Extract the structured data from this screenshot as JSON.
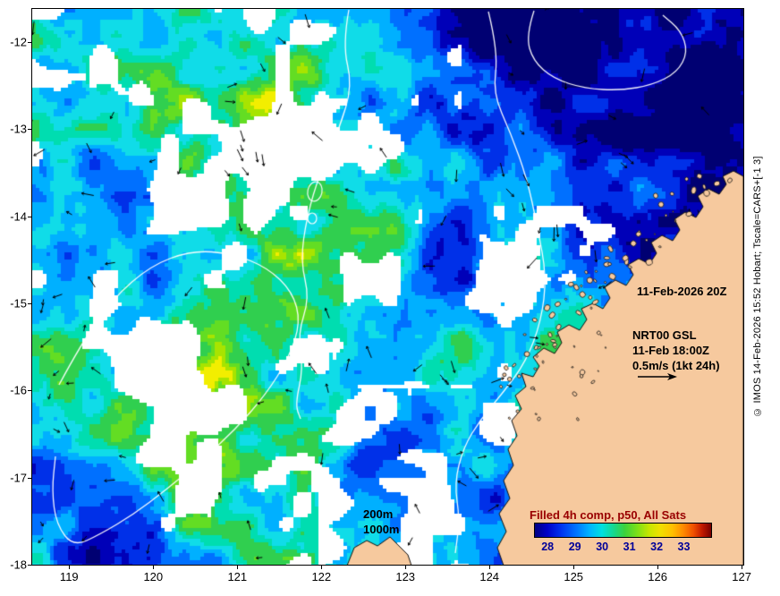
{
  "figure": {
    "description": "Satellite sea-surface-temperature composite map with current vectors, north-west Australia coast"
  },
  "axes": {
    "x": {
      "ticks": [
        "119",
        "120",
        "121",
        "122",
        "123",
        "124",
        "125",
        "126",
        "127"
      ],
      "values": [
        119,
        120,
        121,
        122,
        123,
        124,
        125,
        126,
        127
      ],
      "range": [
        118.56,
        127.02
      ]
    },
    "y": {
      "ticks": [
        "-12",
        "-13",
        "-14",
        "-15",
        "-16",
        "-17",
        "-18"
      ],
      "values": [
        -12,
        -13,
        -14,
        -15,
        -16,
        -17,
        -18
      ],
      "range": [
        -18,
        -11.62
      ]
    }
  },
  "annotations": {
    "timestamp": "11-Feb-2026 20Z",
    "vector_key": {
      "model": "NRT00 GSL",
      "time": "11-Feb 18:00Z",
      "scale": "0.5m/s (1kt 24h)"
    },
    "contour_labels": [
      "200m",
      "1000m"
    ]
  },
  "colorbar": {
    "title": "Filled 4h comp, p50, All Sats",
    "ticks": [
      28,
      29,
      30,
      31,
      32,
      33
    ],
    "range": [
      27.5,
      34
    ],
    "title_color": "#990000"
  },
  "credit": "© IMOS 14-Feb-2026 15:52 Hobart; Tscale=CARS+[-1 3]",
  "colors": {
    "land": "#f6c99e",
    "no_data": "#ffffff",
    "contour": "#ffffff",
    "vectors": "#000000",
    "sst_palette": [
      "#000072",
      "#0000b8",
      "#0030e8",
      "#0070ff",
      "#00b0ff",
      "#10dce8",
      "#00ddb0",
      "#30cf4f",
      "#63dd23",
      "#a8e400",
      "#f2ee00"
    ]
  },
  "chart_data": {
    "type": "heatmap",
    "title": "Filled 4h comp, p50, All Sats",
    "x_ticks": [
      119,
      120,
      121,
      122,
      123,
      124,
      125,
      126,
      127
    ],
    "y_ticks": [
      -12,
      -13,
      -14,
      -15,
      -16,
      -17,
      -18
    ],
    "xlim": [
      118.56,
      127.02
    ],
    "ylim": [
      -18,
      -11.62
    ],
    "grid": false,
    "colorbar_ticks": [
      28,
      29,
      30,
      31,
      32,
      33
    ],
    "value_range_estimate": [
      28,
      31
    ],
    "overlays": {
      "bathymetry_contours_m": [
        200,
        1000
      ],
      "current_vector_reference": "0.5m/s (1kt 24h)",
      "current_field": "NRT00 GSL 11-Feb 18:00Z",
      "composite_time": "11-Feb-2026 20Z",
      "land": "tan land mass lower-right (Kimberley coast), white = no data / cloud"
    },
    "legend_position": "inside-bottom-right"
  }
}
